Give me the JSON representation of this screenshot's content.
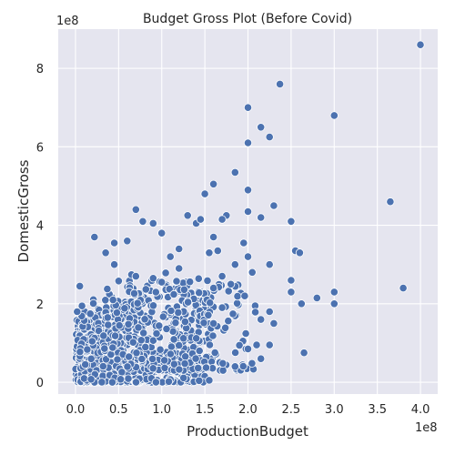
{
  "chart_data": {
    "type": "scatter",
    "title": "Budget Gross Plot (Before Covid)",
    "xlabel": "ProductionBudget",
    "ylabel": "DomesticGross",
    "x_offset_label": "1e8",
    "y_offset_label": "1e8",
    "xlim": [
      -0.2,
      4.2
    ],
    "ylim": [
      -0.3,
      9.0
    ],
    "x_ticks": [
      0.0,
      0.5,
      1.0,
      1.5,
      2.0,
      2.5,
      3.0,
      3.5,
      4.0
    ],
    "x_tick_labels": [
      "0.0",
      "0.5",
      "1.0",
      "1.5",
      "2.0",
      "2.5",
      "3.0",
      "3.5",
      "4.0"
    ],
    "y_ticks": [
      0,
      2,
      4,
      6,
      8
    ],
    "y_tick_labels": [
      "0",
      "2",
      "4",
      "6",
      "8"
    ],
    "grid": true,
    "background": "#e5e5ef",
    "marker_color": "#4c72b0",
    "units_note": "values in units of 1e8",
    "points": [
      [
        4.0,
        8.6
      ],
      [
        2.37,
        7.6
      ],
      [
        2.0,
        7.0
      ],
      [
        2.15,
        6.5
      ],
      [
        2.25,
        6.25
      ],
      [
        3.0,
        6.8
      ],
      [
        2.0,
        6.1
      ],
      [
        1.85,
        5.35
      ],
      [
        1.6,
        5.05
      ],
      [
        1.5,
        4.8
      ],
      [
        2.0,
        4.9
      ],
      [
        3.65,
        4.6
      ],
      [
        2.3,
        4.5
      ],
      [
        0.7,
        4.4
      ],
      [
        2.5,
        4.1
      ],
      [
        0.78,
        4.1
      ],
      [
        0.9,
        4.05
      ],
      [
        1.3,
        4.25
      ],
      [
        1.4,
        4.05
      ],
      [
        2.0,
        4.35
      ],
      [
        2.15,
        4.2
      ],
      [
        1.75,
        4.25
      ],
      [
        1.7,
        4.15
      ],
      [
        1.45,
        4.15
      ],
      [
        1.6,
        3.7
      ],
      [
        0.22,
        3.7
      ],
      [
        1.0,
        3.8
      ],
      [
        0.6,
        3.6
      ],
      [
        0.45,
        3.55
      ],
      [
        1.2,
        3.4
      ],
      [
        0.35,
        3.3
      ],
      [
        1.1,
        3.2
      ],
      [
        1.95,
        3.55
      ],
      [
        2.55,
        3.35
      ],
      [
        2.6,
        3.3
      ],
      [
        1.55,
        3.3
      ],
      [
        1.65,
        3.35
      ],
      [
        2.0,
        3.2
      ],
      [
        1.85,
        3.0
      ],
      [
        2.25,
        3.0
      ],
      [
        2.5,
        2.6
      ],
      [
        0.45,
        3.0
      ],
      [
        0.7,
        2.7
      ],
      [
        0.9,
        2.65
      ],
      [
        1.0,
        2.55
      ],
      [
        1.2,
        2.9
      ],
      [
        1.6,
        2.4
      ],
      [
        1.7,
        2.7
      ],
      [
        2.05,
        2.8
      ],
      [
        2.5,
        2.3
      ],
      [
        3.0,
        2.3
      ],
      [
        2.8,
        2.15
      ],
      [
        3.8,
        2.4
      ],
      [
        3.0,
        2.0
      ],
      [
        2.62,
        2.0
      ],
      [
        2.25,
        1.8
      ],
      [
        2.15,
        1.6
      ],
      [
        2.3,
        1.5
      ],
      [
        2.65,
        0.75
      ],
      [
        2.25,
        0.95
      ],
      [
        0.05,
        2.45
      ],
      [
        0.02,
        1.8
      ],
      [
        1.55,
        0.05
      ],
      [
        2.0,
        0.85
      ],
      [
        2.1,
        0.95
      ],
      [
        1.85,
        0.4
      ],
      [
        2.15,
        0.6
      ],
      [
        1.6,
        1.5
      ],
      [
        1.7,
        1.9
      ]
    ],
    "cluster": [
      {
        "xmin": 0.0,
        "xmax": 0.35,
        "ymin": 0.0,
        "ymax": 1.6,
        "n": 260
      },
      {
        "xmin": 0.05,
        "xmax": 0.8,
        "ymin": 0.0,
        "ymax": 2.2,
        "n": 300
      },
      {
        "xmin": 0.3,
        "xmax": 1.5,
        "ymin": 0.0,
        "ymax": 2.6,
        "n": 280
      },
      {
        "xmin": 0.6,
        "xmax": 1.6,
        "ymin": 0.3,
        "ymax": 2.8,
        "n": 160
      },
      {
        "xmin": 1.2,
        "xmax": 2.1,
        "ymin": 0.3,
        "ymax": 2.5,
        "n": 90
      }
    ]
  }
}
